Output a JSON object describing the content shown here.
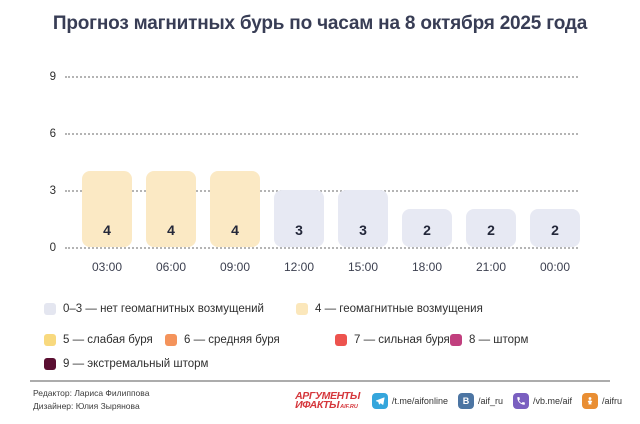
{
  "title": "Прогноз магнитных бурь по часам на 8 октября 2025 года",
  "chart_data": {
    "type": "bar",
    "title": "Прогноз магнитных бурь по часам на 8 октября 2025 года",
    "categories": [
      "03:00",
      "06:00",
      "09:00",
      "12:00",
      "15:00",
      "18:00",
      "21:00",
      "00:00"
    ],
    "values": [
      4,
      4,
      4,
      3,
      3,
      2,
      2,
      2
    ],
    "xlabel": "",
    "ylabel": "",
    "ylim": [
      0,
      9
    ],
    "yticks": [
      0,
      3,
      6,
      9
    ],
    "grid": "horizontal-dotted",
    "bar_label_position": "inside-bottom",
    "legend_position": "below",
    "colors": {
      "elevated": "#fbe9c4",
      "normal": "#e7e9f3",
      "elevated_threshold": 4
    }
  },
  "legend": {
    "rows": [
      [
        {
          "color": "#e4e6f0",
          "label": "0–3 — нет геомагнитных возмущений"
        },
        {
          "color": "#fbe7bb",
          "label": "4 — геомагнитные возмущения"
        }
      ],
      [
        {
          "color": "#f8d97e",
          "label": "5 — слабая буря"
        },
        {
          "color": "#f4935b",
          "label": "6 — средняя буря"
        },
        {
          "color": "#ed534e",
          "label": "7 — сильная буря"
        },
        {
          "color": "#c13f7e",
          "label": "8 — шторм"
        }
      ],
      [
        {
          "color": "#5a0f31",
          "label": "9 — экстремальный шторм"
        }
      ]
    ]
  },
  "footer": {
    "editor": "Редактор: Лариса Филиппова",
    "designer": "Дизайнер: Юлия Зырянова",
    "logo": {
      "line1": "АРГУМЕНТЫ",
      "line2": "ИФАКТЫ",
      "suffix": "AIF.RU"
    },
    "socials": [
      {
        "icon": "telegram-icon",
        "color": "#35a6dc",
        "label": "/t.me/aifonline"
      },
      {
        "icon": "vk-icon",
        "color": "#4c75a3",
        "label": "/aif_ru"
      },
      {
        "icon": "viber-icon",
        "color": "#7a5fc0",
        "label": "/vb.me/aif"
      },
      {
        "icon": "ok-icon",
        "color": "#e98e33",
        "label": "/aifru"
      }
    ]
  }
}
